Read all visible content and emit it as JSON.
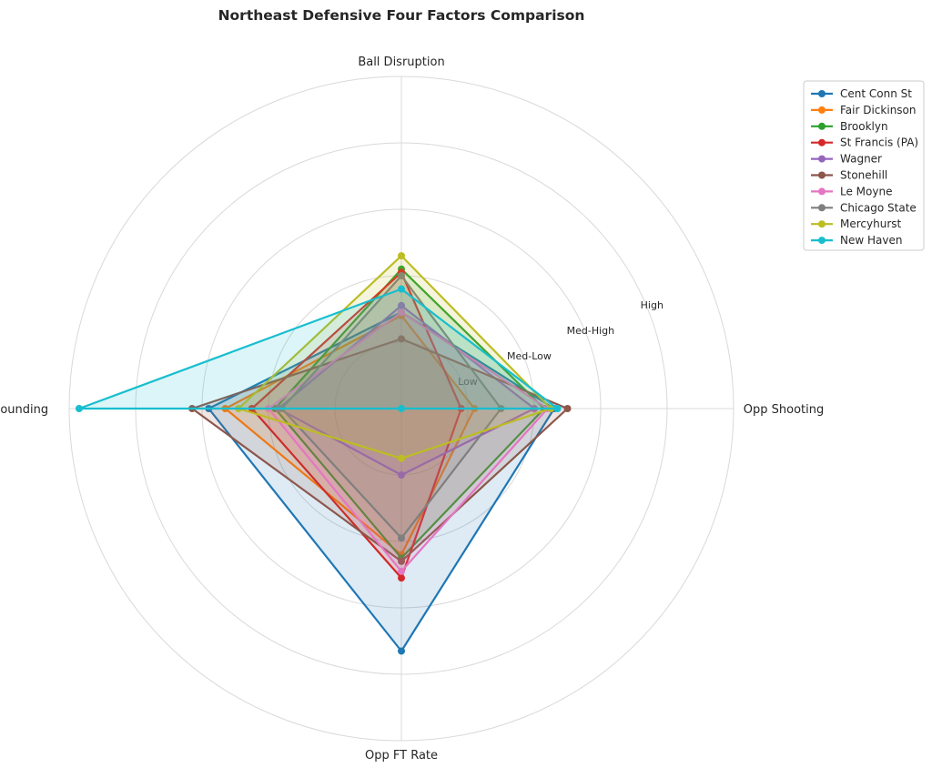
{
  "chart_data": {
    "type": "radar",
    "title": "Northeast Defensive Four Factors Comparison",
    "axes": [
      "Opp Shooting",
      "Ball Disruption",
      "Def Rebounding",
      "Opp FT Rate"
    ],
    "radial_ticks": [
      {
        "label": "Low",
        "value": 1
      },
      {
        "label": "Med-Low",
        "value": 2
      },
      {
        "label": "Med-High",
        "value": 3
      },
      {
        "label": "High",
        "value": 4
      }
    ],
    "rmax": 5,
    "grid": true,
    "legend_position": "upper-right-outside",
    "series": [
      {
        "name": "Cent Conn St",
        "color": "#1f77b4",
        "values": [
          2.3,
          1.45,
          2.9,
          3.65
        ]
      },
      {
        "name": "Fair Dickinson",
        "color": "#ff7f0e",
        "values": [
          1.1,
          1.4,
          2.65,
          2.2
        ]
      },
      {
        "name": "Brooklyn",
        "color": "#2ca02c",
        "values": [
          2.15,
          2.1,
          1.9,
          2.25
        ]
      },
      {
        "name": "St Francis (PA)",
        "color": "#d62728",
        "values": [
          0.9,
          2.05,
          2.25,
          2.55
        ]
      },
      {
        "name": "Wagner",
        "color": "#9467bd",
        "values": [
          2.0,
          1.55,
          1.85,
          1.0
        ]
      },
      {
        "name": "Stonehill",
        "color": "#8c564b",
        "values": [
          2.5,
          1.05,
          3.15,
          2.3
        ]
      },
      {
        "name": "Le Moyne",
        "color": "#e377c2",
        "values": [
          2.2,
          1.45,
          2.0,
          2.45
        ]
      },
      {
        "name": "Chicago State",
        "color": "#7f7f7f",
        "values": [
          1.5,
          2.0,
          1.8,
          1.95
        ]
      },
      {
        "name": "Mercyhurst",
        "color": "#bcbd22",
        "values": [
          2.25,
          2.3,
          2.45,
          0.75
        ]
      },
      {
        "name": "New Haven",
        "color": "#17becf",
        "values": [
          2.35,
          1.8,
          4.85,
          0.0
        ]
      }
    ]
  }
}
